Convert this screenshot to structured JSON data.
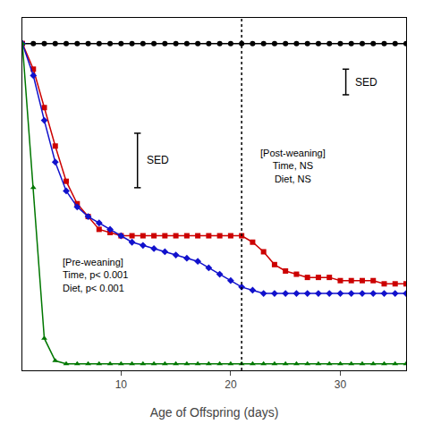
{
  "chart_data": {
    "type": "line",
    "xlabel": "Age of Offspring (days)",
    "x": [
      1,
      2,
      3,
      4,
      5,
      6,
      7,
      8,
      9,
      10,
      11,
      12,
      13,
      14,
      15,
      16,
      17,
      18,
      19,
      20,
      21,
      22,
      23,
      24,
      25,
      26,
      27,
      28,
      29,
      30,
      31,
      32,
      33,
      34,
      35,
      36
    ],
    "xlim": [
      1,
      36
    ],
    "xticks": [
      10,
      20,
      30
    ],
    "ylim": [
      -0.02,
      1.08
    ],
    "yticks": [],
    "tick_labels": "x",
    "grid": false,
    "series": [
      {
        "color": "#000000",
        "marker": "circle",
        "values": [
          1.0,
          1.0,
          1.0,
          1.0,
          1.0,
          1.0,
          1.0,
          1.0,
          1.0,
          1.0,
          1.0,
          1.0,
          1.0,
          1.0,
          1.0,
          1.0,
          1.0,
          1.0,
          1.0,
          1.0,
          1.0,
          1.0,
          1.0,
          1.0,
          1.0,
          1.0,
          1.0,
          1.0,
          1.0,
          1.0,
          1.0,
          1.0,
          1.0,
          1.0,
          1.0,
          1.0
        ]
      },
      {
        "color": "#cc0000",
        "marker": "square",
        "values": [
          1.0,
          0.92,
          0.8,
          0.68,
          0.57,
          0.5,
          0.46,
          0.42,
          0.41,
          0.4,
          0.4,
          0.4,
          0.4,
          0.4,
          0.4,
          0.4,
          0.4,
          0.4,
          0.4,
          0.4,
          0.4,
          0.38,
          0.35,
          0.31,
          0.29,
          0.28,
          0.27,
          0.27,
          0.27,
          0.26,
          0.26,
          0.26,
          0.26,
          0.25,
          0.25,
          0.25
        ]
      },
      {
        "color": "#1111cc",
        "marker": "diamond",
        "values": [
          1.0,
          0.9,
          0.76,
          0.63,
          0.54,
          0.49,
          0.46,
          0.44,
          0.42,
          0.4,
          0.38,
          0.37,
          0.36,
          0.35,
          0.34,
          0.33,
          0.32,
          0.3,
          0.28,
          0.26,
          0.24,
          0.23,
          0.22,
          0.22,
          0.22,
          0.22,
          0.22,
          0.22,
          0.22,
          0.22,
          0.22,
          0.22,
          0.22,
          0.22,
          0.22,
          0.22
        ]
      },
      {
        "color": "#007700",
        "marker": "triangle-up",
        "values": [
          1.0,
          0.55,
          0.08,
          0.01,
          0.0,
          0.0,
          0.0,
          0.0,
          0.0,
          0.0,
          0.0,
          0.0,
          0.0,
          0.0,
          0.0,
          0.0,
          0.0,
          0.0,
          0.0,
          0.0,
          0.0,
          0.0,
          0.0,
          0.0,
          0.0,
          0.0,
          0.0,
          0.0,
          0.0,
          0.0,
          0.0,
          0.0,
          0.0,
          0.0,
          0.0,
          0.0
        ]
      }
    ],
    "vline": {
      "x": 21,
      "line_style": "dotted"
    },
    "sed_bars": [
      {
        "x": 11.5,
        "low": 0.55,
        "high": 0.72,
        "label": "SED"
      },
      {
        "x": 30.5,
        "low": 0.84,
        "high": 0.92,
        "label": "SED"
      }
    ],
    "annotations": [
      {
        "text": "[Pre-weaning]\nTime, p< 0.001\nDiet, p< 0.001",
        "x": 4.5,
        "y": 0.34,
        "align": "left"
      },
      {
        "text": "[Post-weaning]\nTime, NS\nDiet, NS",
        "x": 22.5,
        "y": 0.68,
        "align": "center"
      }
    ]
  }
}
